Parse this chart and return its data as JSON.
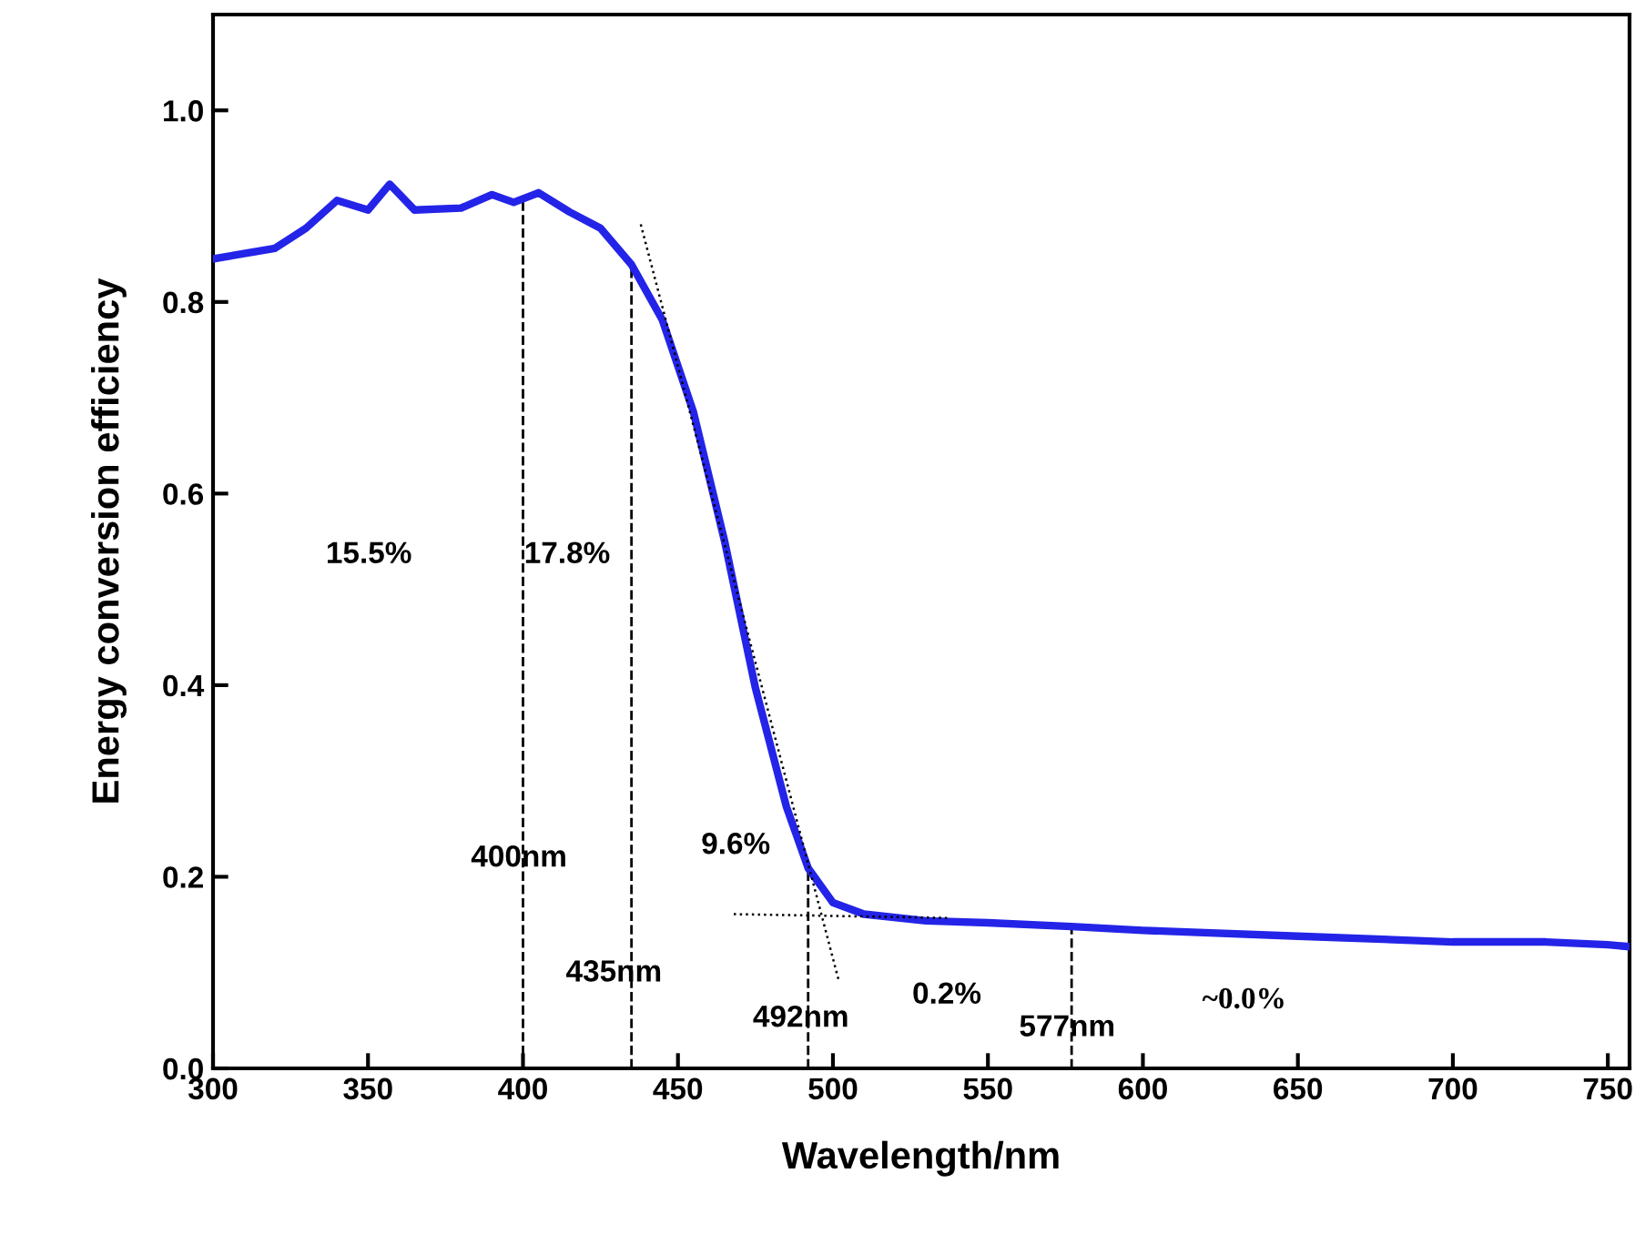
{
  "chart_data": {
    "type": "line",
    "xlabel": "Wavelength/nm",
    "ylabel": "Energy conversion efficiency",
    "xlim": [
      300,
      757
    ],
    "ylim": [
      0,
      1.1
    ],
    "xticks": [
      300,
      350,
      400,
      450,
      500,
      550,
      600,
      650,
      700,
      750
    ],
    "yticks": [
      {
        "value": 0,
        "label": "0.0"
      },
      {
        "value": 0.2,
        "label": "0.2"
      },
      {
        "value": 0.4,
        "label": "0.4"
      },
      {
        "value": 0.6,
        "label": "0.6"
      },
      {
        "value": 0.8,
        "label": "0.8"
      },
      {
        "value": 1.0,
        "label": "1.0"
      }
    ],
    "grid": false,
    "legend": false,
    "series": [
      {
        "color": "#2424e8",
        "line_style": "solid",
        "x": [
          300,
          320,
          330,
          340,
          350,
          357,
          365,
          380,
          390,
          397,
          405,
          415,
          425,
          435,
          445,
          455,
          465,
          475,
          485,
          492,
          500,
          510,
          530,
          550,
          577,
          600,
          650,
          700,
          730,
          750,
          757
        ],
        "values": [
          0.845,
          0.856,
          0.877,
          0.906,
          0.896,
          0.923,
          0.896,
          0.898,
          0.912,
          0.904,
          0.914,
          0.894,
          0.877,
          0.839,
          0.781,
          0.685,
          0.551,
          0.397,
          0.273,
          0.209,
          0.173,
          0.161,
          0.154,
          0.152,
          0.148,
          0.144,
          0.138,
          0.132,
          0.132,
          0.129,
          0.127
        ]
      },
      {
        "color": "#000000",
        "line_style": "dotted",
        "x": [
          438,
          502
        ],
        "values": [
          0.881,
          0.09
        ]
      },
      {
        "color": "#000000",
        "line_style": "dotted",
        "x": [
          468,
          537
        ],
        "values": [
          0.161,
          0.157
        ]
      }
    ],
    "ref_lines": [
      {
        "axis": "x",
        "value": 400,
        "label": "400nm",
        "line_style": "dashed",
        "color": "#000000"
      },
      {
        "axis": "x",
        "value": 435,
        "label": "435nm",
        "line_style": "dashed",
        "color": "#000000"
      },
      {
        "axis": "x",
        "value": 492,
        "label": "492nm",
        "line_style": "dashed",
        "color": "#000000"
      },
      {
        "axis": "x",
        "value": 577,
        "label": "577nm",
        "line_style": "dashed",
        "color": "#000000"
      }
    ],
    "annotations": [
      "15.5%",
      "17.8%",
      "9.6%",
      "0.2%",
      "~0.0%"
    ]
  }
}
